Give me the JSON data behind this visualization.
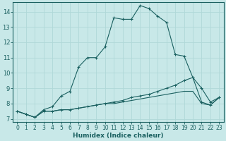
{
  "xlabel": "Humidex (Indice chaleur)",
  "bg_color": "#c8e8e8",
  "grid_color": "#b0d8d8",
  "line_color": "#1a6060",
  "xlim": [
    -0.5,
    23.5
  ],
  "ylim": [
    6.8,
    14.6
  ],
  "yticks": [
    7,
    8,
    9,
    10,
    11,
    12,
    13,
    14
  ],
  "xticks": [
    0,
    1,
    2,
    3,
    4,
    5,
    6,
    7,
    8,
    9,
    10,
    11,
    12,
    13,
    14,
    15,
    16,
    17,
    18,
    19,
    20,
    21,
    22,
    23
  ],
  "series1_x": [
    0,
    1,
    2,
    3,
    4,
    5,
    6,
    7,
    8,
    9,
    10,
    11,
    12,
    13,
    14,
    15,
    16,
    17,
    18,
    19,
    20,
    21,
    22,
    23
  ],
  "series1_y": [
    7.5,
    7.3,
    7.1,
    7.6,
    7.8,
    8.5,
    8.8,
    10.4,
    11.0,
    11.0,
    11.7,
    13.6,
    13.5,
    13.5,
    14.4,
    14.2,
    13.7,
    13.3,
    11.2,
    11.1,
    9.7,
    9.0,
    8.1,
    8.4
  ],
  "series2_x": [
    0,
    1,
    2,
    3,
    4,
    5,
    6,
    7,
    8,
    9,
    10,
    11,
    12,
    13,
    14,
    15,
    16,
    17,
    18,
    19,
    20,
    21,
    22,
    23
  ],
  "series2_y": [
    7.5,
    7.3,
    7.1,
    7.5,
    7.5,
    7.6,
    7.6,
    7.7,
    7.8,
    7.9,
    8.0,
    8.1,
    8.2,
    8.4,
    8.5,
    8.6,
    8.8,
    9.0,
    9.2,
    9.5,
    9.7,
    8.1,
    7.9,
    8.4
  ],
  "series3_x": [
    0,
    1,
    2,
    3,
    4,
    5,
    6,
    7,
    8,
    9,
    10,
    11,
    12,
    13,
    14,
    15,
    16,
    17,
    18,
    19,
    20,
    21,
    22,
    23
  ],
  "series3_y": [
    7.5,
    7.3,
    7.1,
    7.5,
    7.5,
    7.6,
    7.6,
    7.7,
    7.8,
    7.9,
    8.0,
    8.0,
    8.1,
    8.2,
    8.3,
    8.4,
    8.5,
    8.6,
    8.7,
    8.8,
    8.8,
    8.0,
    7.9,
    8.4
  ]
}
